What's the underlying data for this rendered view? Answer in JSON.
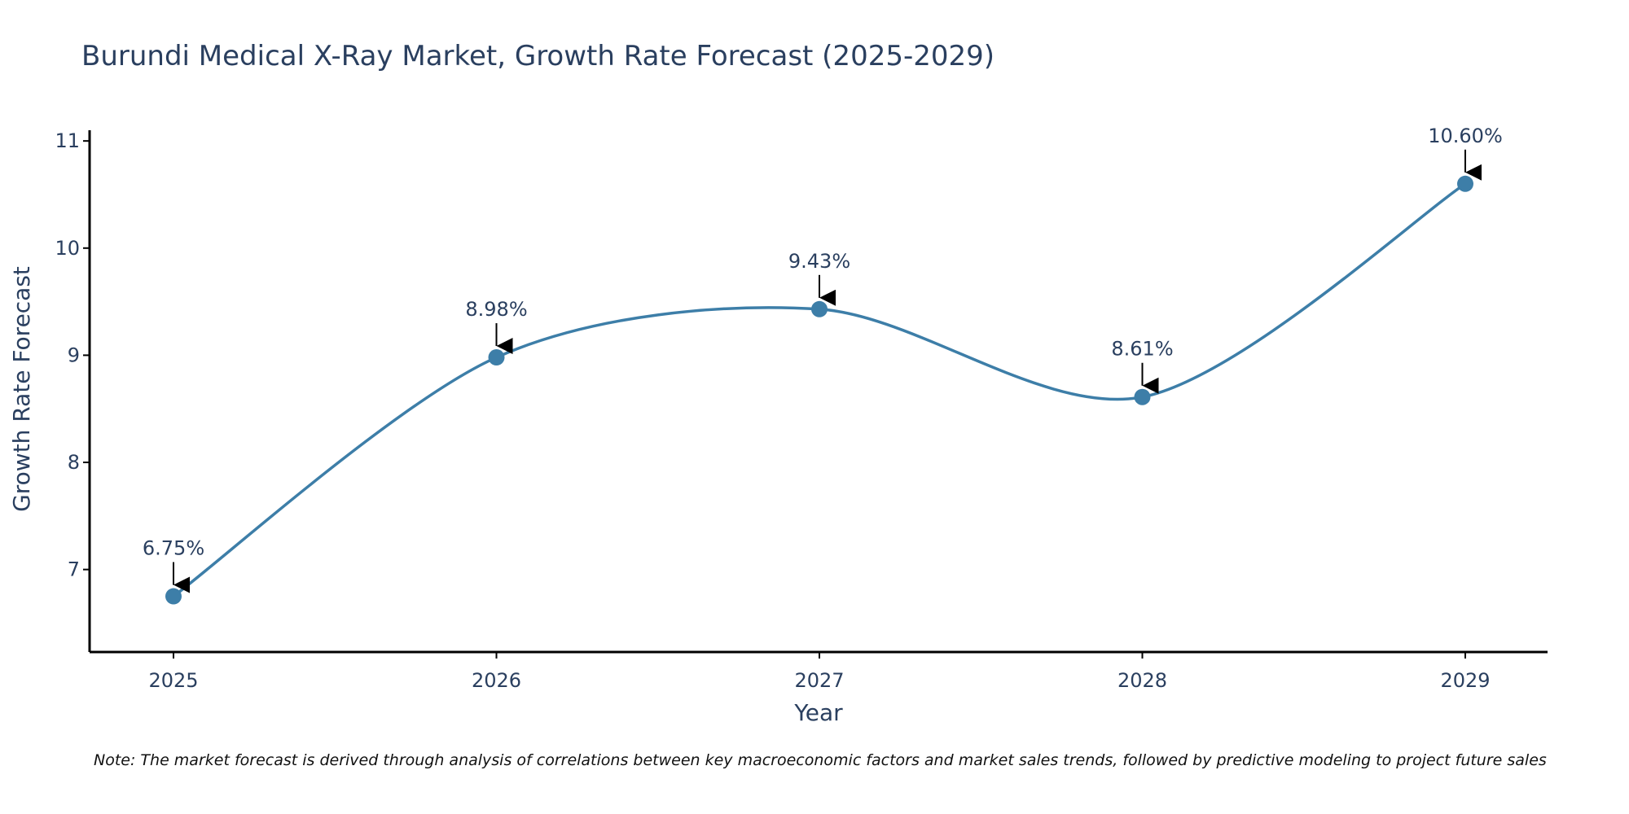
{
  "chart_data": {
    "type": "line",
    "title": "Burundi Medical X-Ray Market, Growth Rate Forecast (2025-2029)",
    "xlabel": "Year",
    "ylabel": "Growth Rate Forecast",
    "categories": [
      "2025",
      "2026",
      "2027",
      "2028",
      "2029"
    ],
    "series": [
      {
        "name": "Growth Rate Forecast",
        "values": [
          6.75,
          8.98,
          9.43,
          8.61,
          10.6
        ],
        "labels": [
          "6.75%",
          "8.98%",
          "9.43%",
          "8.61%",
          "10.60%"
        ]
      }
    ],
    "yticks": [
      7,
      8,
      9,
      10,
      11
    ],
    "ytick_labels": [
      "7",
      "8",
      "9",
      "10",
      "11"
    ],
    "ylim": [
      6.23,
      11.1
    ],
    "line_shape": "spline",
    "grid": false,
    "legend": "none",
    "colors": {
      "line": "#3d7ea8",
      "marker": "#3d7ea8",
      "axis": "#000000",
      "text": "#2a3f5f",
      "arrow": "#000000"
    },
    "note": "Note: The market forecast is derived through analysis of correlations between key macroeconomic factors and market sales trends, followed by predictive modeling to project future sales"
  }
}
